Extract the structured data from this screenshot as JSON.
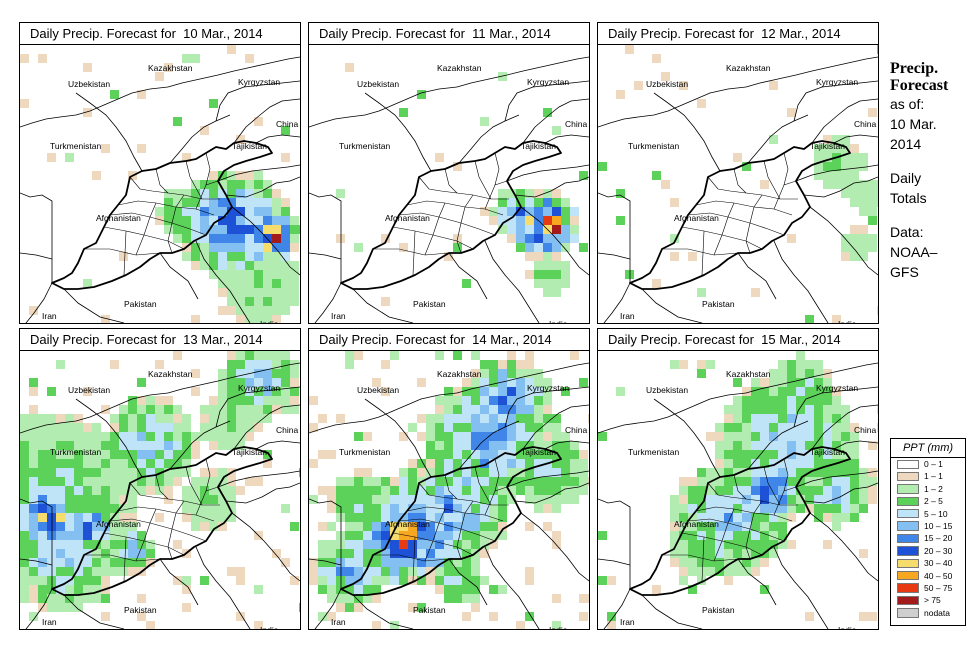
{
  "panels": [
    {
      "title": "Daily Precip. Forecast for  10 Mar., 2014",
      "scenario": "d10"
    },
    {
      "title": "Daily Precip. Forecast for  11 Mar., 2014",
      "scenario": "d11"
    },
    {
      "title": "Daily Precip. Forecast for  12 Mar., 2014",
      "scenario": "d12"
    },
    {
      "title": "Daily Precip. Forecast for  13 Mar., 2014",
      "scenario": "d13"
    },
    {
      "title": "Daily Precip. Forecast for  14 Mar., 2014",
      "scenario": "d14"
    },
    {
      "title": "Daily Precip. Forecast for  15 Mar., 2014",
      "scenario": "d15"
    }
  ],
  "country_labels": {
    "uzbekistan": "Uzbekistan",
    "kazakhstan": "Kazakhstan",
    "kyrgyzstan": "Kyrgyzstan",
    "china": "China",
    "turkmenistan": "Turkmenistan",
    "tajikistan": "Tajikistan",
    "afghanistan": "Afghanistan",
    "pakistan": "Pakistan",
    "iran": "Iran",
    "india": "India"
  },
  "side_info": {
    "heading_line1": "Precip.",
    "heading_line2": "Forecast",
    "as_of": "as of:",
    "date_line1": "10 Mar.",
    "date_line2": "2014",
    "period_line1": "Daily",
    "period_line2": "Totals",
    "source_line1": "Data:",
    "source_line2": "NOAA–",
    "source_line3": "GFS"
  },
  "legend": {
    "title": "PPT (mm)",
    "classes": [
      {
        "label": "0 – 1",
        "color": "#ffffff"
      },
      {
        "label": "1 – 1",
        "color": "#eed9bf"
      },
      {
        "label": "1 – 2",
        "color": "#b3ecb0"
      },
      {
        "label": "2 – 5",
        "color": "#5dd25a"
      },
      {
        "label": "5 – 10",
        "color": "#bfe3f7"
      },
      {
        "label": "10 – 15",
        "color": "#83bff0"
      },
      {
        "label": "15 – 20",
        "color": "#3f86e8"
      },
      {
        "label": "20 – 30",
        "color": "#1e52d6"
      },
      {
        "label": "30 – 40",
        "color": "#f5dc6c"
      },
      {
        "label": "40 – 50",
        "color": "#f8a820"
      },
      {
        "label": "50 – 75",
        "color": "#e63a12"
      },
      {
        "label": "> 75",
        "color": "#a31a1a"
      },
      {
        "label": "nodata",
        "color": "#cfcfcf"
      }
    ]
  }
}
